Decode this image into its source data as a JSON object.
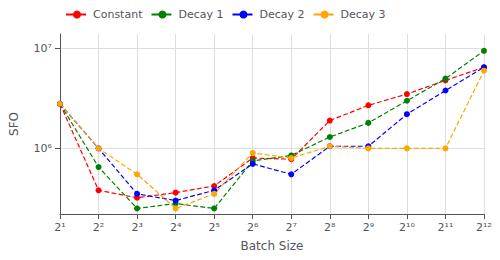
{
  "chart_data": {
    "type": "line",
    "xlabel": "Batch Size",
    "ylabel": "SFO",
    "categories": [
      "2¹",
      "2²",
      "2³",
      "2⁴",
      "2⁵",
      "2⁶",
      "2⁷",
      "2⁸",
      "2⁹",
      "2¹⁰",
      "2¹¹",
      "2¹²"
    ],
    "series": [
      {
        "name": "Constant",
        "color": "#ff0000",
        "values": [
          2800000.0,
          380000.0,
          320000.0,
          360000.0,
          420000.0,
          800000.0,
          780000.0,
          1900000.0,
          2700000.0,
          3500000.0,
          4800000.0,
          6500000.0
        ]
      },
      {
        "name": "Decay 1",
        "color": "#008000",
        "values": [
          2800000.0,
          650000.0,
          250000.0,
          280000.0,
          250000.0,
          750000.0,
          850000.0,
          1300000.0,
          1800000.0,
          3000000.0,
          5000000.0,
          9500000.0
        ]
      },
      {
        "name": "Decay 2",
        "color": "#0000ff",
        "values": [
          2800000.0,
          1000000.0,
          350000.0,
          300000.0,
          380000.0,
          700000.0,
          550000.0,
          1050000.0,
          1050000.0,
          2200000.0,
          3800000.0,
          6500000.0
        ]
      },
      {
        "name": "Decay 3",
        "color": "#ffa500",
        "values": [
          2800000.0,
          1000000.0,
          550000.0,
          250000.0,
          350000.0,
          900000.0,
          800000.0,
          1050000.0,
          1000000.0,
          1000000.0,
          1000000.0,
          6000000.0
        ]
      }
    ],
    "log": "y",
    "ylim": [
      220000.0,
      14000000.0
    ],
    "yticks": [
      {
        "value": 1000000,
        "label": "10⁶"
      },
      {
        "value": 10000000,
        "label": "10⁷"
      }
    ],
    "grid": true,
    "legend": "upper left",
    "marker": "circle",
    "line_style": "dashed"
  }
}
